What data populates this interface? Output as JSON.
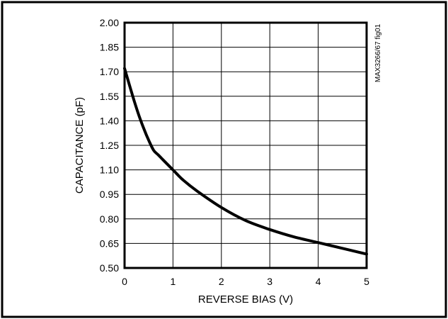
{
  "chart_data": {
    "type": "line",
    "title": "",
    "xlabel": "REVERSE BIAS (V)",
    "ylabel": "CAPACITANCE (pF)",
    "xlim": [
      0,
      5
    ],
    "ylim": [
      0.5,
      2.0
    ],
    "x_ticks": [
      "0",
      "1",
      "2",
      "3",
      "4",
      "5"
    ],
    "y_ticks": [
      "2.00",
      "1.85",
      "1.70",
      "1.55",
      "1.40",
      "1.25",
      "1.10",
      "0.95",
      "0.80",
      "0.65",
      "0.50"
    ],
    "grid": true,
    "annotation": "MAX3266/67 fig01",
    "series": [
      {
        "x": [
          0,
          0.1,
          0.2,
          0.3,
          0.4,
          0.5,
          0.6,
          0.7,
          0.8,
          1.0,
          1.2,
          1.5,
          2.0,
          2.5,
          3.0,
          3.5,
          4.0,
          4.5,
          5.0
        ],
        "y": [
          1.72,
          1.62,
          1.52,
          1.43,
          1.35,
          1.28,
          1.22,
          1.19,
          1.16,
          1.1,
          1.04,
          0.97,
          0.87,
          0.79,
          0.735,
          0.69,
          0.655,
          0.62,
          0.585
        ],
        "color": "#000000"
      }
    ]
  }
}
